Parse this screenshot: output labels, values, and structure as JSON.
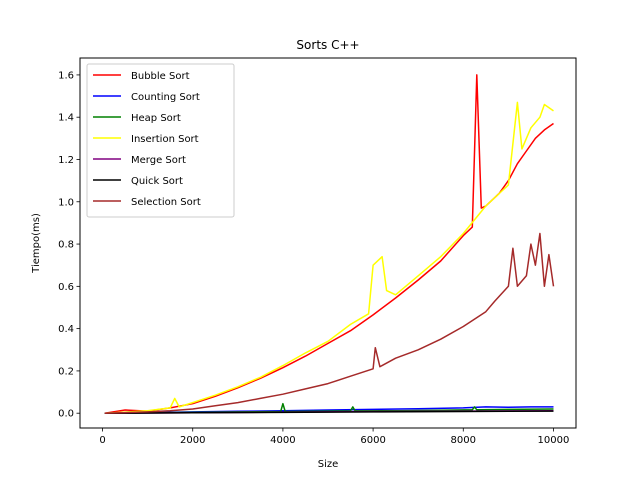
{
  "chart_data": {
    "type": "line",
    "title": "Sorts C++",
    "xlabel": "Size",
    "ylabel": "Tiempo(ms)",
    "xlim": [
      -500,
      10500
    ],
    "ylim": [
      -0.07,
      1.68
    ],
    "xticks": [
      0,
      2000,
      4000,
      6000,
      8000,
      10000
    ],
    "yticks": [
      0.0,
      0.2,
      0.4,
      0.6,
      0.8,
      1.0,
      1.2,
      1.4,
      1.6
    ],
    "grid": false,
    "legend_position": "top-left",
    "series": [
      {
        "name": "Bubble Sort",
        "color": "#ff0000",
        "points": [
          [
            50,
            0.0
          ],
          [
            500,
            0.015
          ],
          [
            1000,
            0.01
          ],
          [
            1500,
            0.025
          ],
          [
            2000,
            0.045
          ],
          [
            2500,
            0.08
          ],
          [
            3000,
            0.12
          ],
          [
            3500,
            0.165
          ],
          [
            4000,
            0.215
          ],
          [
            4500,
            0.27
          ],
          [
            5000,
            0.33
          ],
          [
            5500,
            0.39
          ],
          [
            6000,
            0.465
          ],
          [
            6500,
            0.545
          ],
          [
            7000,
            0.63
          ],
          [
            7500,
            0.72
          ],
          [
            8000,
            0.84
          ],
          [
            8200,
            0.88
          ],
          [
            8300,
            1.6
          ],
          [
            8400,
            0.97
          ],
          [
            8500,
            0.98
          ],
          [
            8800,
            1.04
          ],
          [
            9000,
            1.1
          ],
          [
            9200,
            1.18
          ],
          [
            9400,
            1.24
          ],
          [
            9600,
            1.3
          ],
          [
            9800,
            1.34
          ],
          [
            10000,
            1.37
          ]
        ]
      },
      {
        "name": "Counting Sort",
        "color": "#0000ff",
        "points": [
          [
            50,
            0.0
          ],
          [
            1000,
            0.003
          ],
          [
            2000,
            0.006
          ],
          [
            3000,
            0.009
          ],
          [
            4000,
            0.012
          ],
          [
            5000,
            0.015
          ],
          [
            6000,
            0.018
          ],
          [
            7000,
            0.021
          ],
          [
            8000,
            0.025
          ],
          [
            8500,
            0.03
          ],
          [
            9000,
            0.028
          ],
          [
            9500,
            0.03
          ],
          [
            10000,
            0.03
          ]
        ]
      },
      {
        "name": "Heap Sort",
        "color": "#008000",
        "points": [
          [
            50,
            0.0
          ],
          [
            1000,
            0.002
          ],
          [
            2000,
            0.004
          ],
          [
            3000,
            0.006
          ],
          [
            3950,
            0.008
          ],
          [
            4000,
            0.045
          ],
          [
            4050,
            0.008
          ],
          [
            5000,
            0.01
          ],
          [
            5500,
            0.011
          ],
          [
            5550,
            0.03
          ],
          [
            5600,
            0.011
          ],
          [
            6500,
            0.012
          ],
          [
            7500,
            0.014
          ],
          [
            8200,
            0.016
          ],
          [
            8250,
            0.03
          ],
          [
            8300,
            0.016
          ],
          [
            9000,
            0.018
          ],
          [
            10000,
            0.02
          ]
        ]
      },
      {
        "name": "Insertion Sort",
        "color": "#ffff00",
        "points": [
          [
            50,
            0.0
          ],
          [
            500,
            0.005
          ],
          [
            1000,
            0.012
          ],
          [
            1500,
            0.025
          ],
          [
            1600,
            0.07
          ],
          [
            1700,
            0.03
          ],
          [
            2000,
            0.05
          ],
          [
            2500,
            0.085
          ],
          [
            3000,
            0.125
          ],
          [
            3500,
            0.17
          ],
          [
            4000,
            0.225
          ],
          [
            4500,
            0.285
          ],
          [
            5000,
            0.34
          ],
          [
            5500,
            0.42
          ],
          [
            5900,
            0.47
          ],
          [
            6000,
            0.7
          ],
          [
            6200,
            0.74
          ],
          [
            6300,
            0.58
          ],
          [
            6500,
            0.56
          ],
          [
            7000,
            0.65
          ],
          [
            7500,
            0.74
          ],
          [
            8000,
            0.85
          ],
          [
            8500,
            0.98
          ],
          [
            9000,
            1.08
          ],
          [
            9200,
            1.47
          ],
          [
            9300,
            1.25
          ],
          [
            9500,
            1.35
          ],
          [
            9700,
            1.4
          ],
          [
            9800,
            1.46
          ],
          [
            10000,
            1.43
          ]
        ]
      },
      {
        "name": "Merge Sort",
        "color": "#800080",
        "points": [
          [
            50,
            0.0
          ],
          [
            2000,
            0.002
          ],
          [
            4000,
            0.005
          ],
          [
            6000,
            0.008
          ],
          [
            8000,
            0.01
          ],
          [
            10000,
            0.012
          ]
        ]
      },
      {
        "name": "Quick Sort",
        "color": "#000000",
        "points": [
          [
            50,
            0.0
          ],
          [
            2000,
            0.002
          ],
          [
            4000,
            0.004
          ],
          [
            6000,
            0.006
          ],
          [
            8000,
            0.008
          ],
          [
            10000,
            0.01
          ]
        ]
      },
      {
        "name": "Selection Sort",
        "color": "#a52a2a",
        "points": [
          [
            50,
            0.0
          ],
          [
            500,
            0.003
          ],
          [
            1000,
            0.006
          ],
          [
            1500,
            0.012
          ],
          [
            2000,
            0.02
          ],
          [
            2500,
            0.035
          ],
          [
            3000,
            0.05
          ],
          [
            3500,
            0.07
          ],
          [
            4000,
            0.09
          ],
          [
            4500,
            0.115
          ],
          [
            5000,
            0.14
          ],
          [
            5500,
            0.175
          ],
          [
            6000,
            0.21
          ],
          [
            6050,
            0.31
          ],
          [
            6150,
            0.22
          ],
          [
            6500,
            0.26
          ],
          [
            7000,
            0.3
          ],
          [
            7500,
            0.35
          ],
          [
            8000,
            0.41
          ],
          [
            8500,
            0.48
          ],
          [
            8700,
            0.53
          ],
          [
            9000,
            0.6
          ],
          [
            9100,
            0.78
          ],
          [
            9200,
            0.6
          ],
          [
            9400,
            0.65
          ],
          [
            9500,
            0.8
          ],
          [
            9600,
            0.7
          ],
          [
            9700,
            0.85
          ],
          [
            9800,
            0.6
          ],
          [
            9900,
            0.75
          ],
          [
            10000,
            0.6
          ]
        ]
      }
    ]
  }
}
